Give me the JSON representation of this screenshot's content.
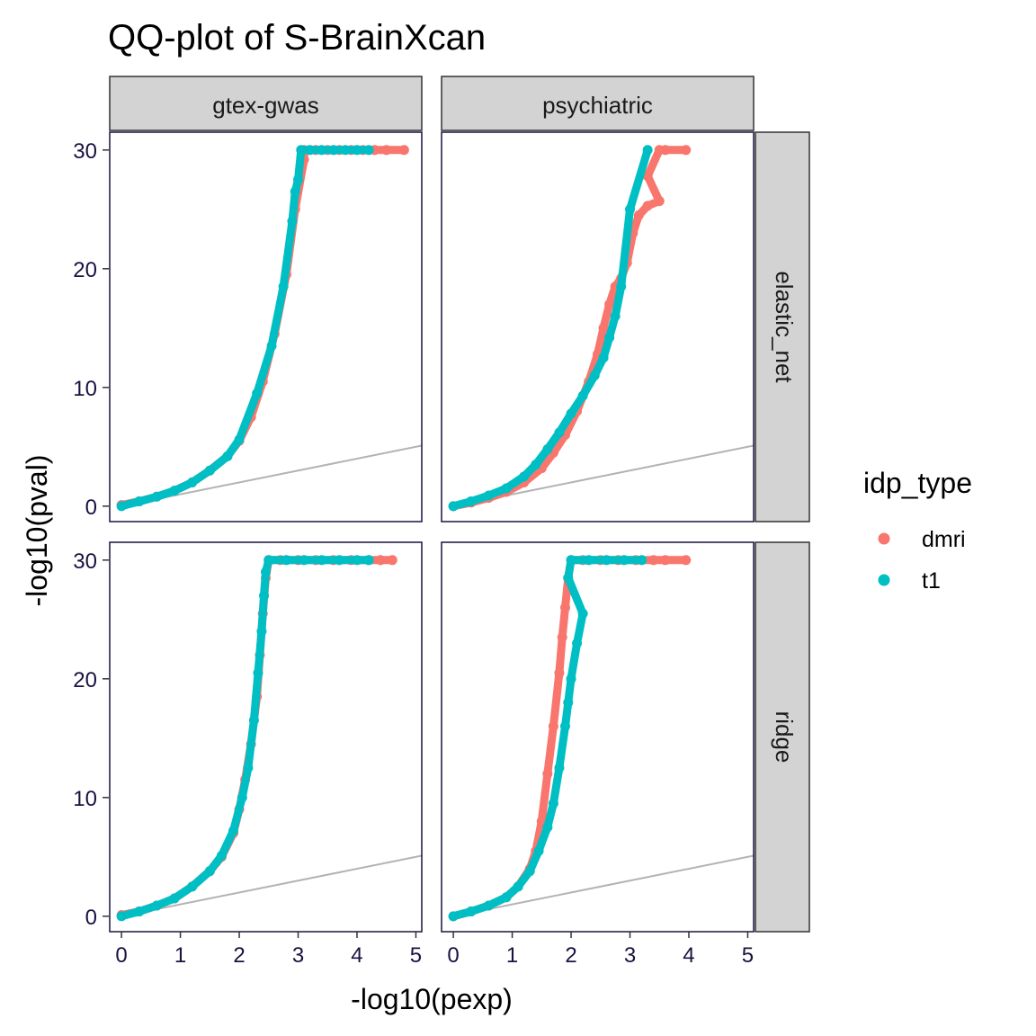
{
  "chart_data": {
    "type": "scatter",
    "title": "QQ-plot of S-BrainXcan",
    "xlabel": "-log10(pexp)",
    "ylabel": "-log10(pval)",
    "xlim": [
      -0.2,
      5.1
    ],
    "ylim": [
      -1.3,
      31.5
    ],
    "x_ticks": [
      "0",
      "1",
      "2",
      "3",
      "4",
      "5"
    ],
    "y_ticks": [
      "0",
      "10",
      "20",
      "30"
    ],
    "col_facets": [
      "gtex-gwas",
      "psychiatric"
    ],
    "row_facets": [
      "elastic_net",
      "ridge"
    ],
    "reference_line": {
      "slope": 1,
      "intercept": 0,
      "color": "#b3b3b3"
    },
    "legend": {
      "title": "idp_type",
      "position": "right",
      "entries": [
        {
          "name": "dmri",
          "color": "#F8766D"
        },
        {
          "name": "t1",
          "color": "#00BFC4"
        }
      ]
    },
    "panels": [
      {
        "col": "gtex-gwas",
        "row": "elastic_net",
        "series": [
          {
            "name": "dmri",
            "color": "#F8766D",
            "points": [
              [
                0,
                0.1
              ],
              [
                0.3,
                0.4
              ],
              [
                0.6,
                0.8
              ],
              [
                0.9,
                1.3
              ],
              [
                1.2,
                2.0
              ],
              [
                1.5,
                3.0
              ],
              [
                1.8,
                4.2
              ],
              [
                2.0,
                5.5
              ],
              [
                2.2,
                7.5
              ],
              [
                2.4,
                10.5
              ],
              [
                2.6,
                14.5
              ],
              [
                2.8,
                19.5
              ],
              [
                2.95,
                25.0
              ],
              [
                3.1,
                29.2
              ],
              [
                3.1,
                30
              ],
              [
                3.3,
                30
              ],
              [
                3.5,
                30
              ],
              [
                3.7,
                30
              ],
              [
                3.9,
                30
              ],
              [
                4.1,
                30
              ],
              [
                4.3,
                30
              ],
              [
                4.5,
                30
              ],
              [
                4.8,
                30
              ]
            ]
          },
          {
            "name": "t1",
            "color": "#00BFC4",
            "points": [
              [
                0,
                0
              ],
              [
                0.3,
                0.4
              ],
              [
                0.6,
                0.8
              ],
              [
                0.9,
                1.3
              ],
              [
                1.2,
                2.0
              ],
              [
                1.5,
                3.0
              ],
              [
                1.8,
                4.2
              ],
              [
                2.0,
                5.6
              ],
              [
                2.3,
                9.5
              ],
              [
                2.55,
                13.5
              ],
              [
                2.75,
                18.5
              ],
              [
                2.9,
                24.0
              ],
              [
                2.95,
                26.5
              ],
              [
                3.0,
                27.5
              ],
              [
                3.05,
                30
              ],
              [
                3.2,
                30
              ],
              [
                3.4,
                30
              ],
              [
                3.6,
                30
              ],
              [
                3.8,
                30
              ],
              [
                4.0,
                30
              ],
              [
                4.2,
                30
              ]
            ]
          }
        ]
      },
      {
        "col": "psychiatric",
        "row": "elastic_net",
        "series": [
          {
            "name": "dmri",
            "color": "#F8766D",
            "points": [
              [
                0,
                0
              ],
              [
                0.3,
                0.3
              ],
              [
                0.6,
                0.7
              ],
              [
                0.9,
                1.2
              ],
              [
                1.2,
                2.0
              ],
              [
                1.5,
                3.2
              ],
              [
                1.7,
                4.5
              ],
              [
                1.9,
                6.0
              ],
              [
                2.1,
                8.0
              ],
              [
                2.3,
                10.5
              ],
              [
                2.45,
                12.8
              ],
              [
                2.55,
                15.0
              ],
              [
                2.65,
                17.0
              ],
              [
                2.75,
                18.5
              ],
              [
                2.85,
                19.2
              ],
              [
                2.95,
                20.5
              ],
              [
                3.05,
                23.0
              ],
              [
                3.15,
                24.5
              ],
              [
                3.3,
                25.3
              ],
              [
                3.5,
                25.7
              ],
              [
                3.3,
                27.8
              ],
              [
                3.5,
                30
              ],
              [
                3.6,
                30
              ],
              [
                3.95,
                30
              ]
            ]
          },
          {
            "name": "t1",
            "color": "#00BFC4",
            "points": [
              [
                0,
                0
              ],
              [
                0.3,
                0.4
              ],
              [
                0.6,
                0.9
              ],
              [
                0.9,
                1.5
              ],
              [
                1.2,
                2.5
              ],
              [
                1.4,
                3.5
              ],
              [
                1.6,
                4.8
              ],
              [
                1.8,
                6.2
              ],
              [
                2.0,
                7.8
              ],
              [
                2.2,
                9.3
              ],
              [
                2.4,
                11.0
              ],
              [
                2.55,
                12.5
              ],
              [
                2.65,
                14.2
              ],
              [
                2.75,
                16.0
              ],
              [
                2.85,
                18.5
              ],
              [
                3.0,
                25.0
              ],
              [
                3.3,
                30
              ]
            ]
          }
        ]
      },
      {
        "col": "gtex-gwas",
        "row": "ridge",
        "series": [
          {
            "name": "dmri",
            "color": "#F8766D",
            "points": [
              [
                0,
                0.1
              ],
              [
                0.3,
                0.4
              ],
              [
                0.6,
                0.9
              ],
              [
                0.9,
                1.5
              ],
              [
                1.2,
                2.5
              ],
              [
                1.5,
                3.8
              ],
              [
                1.7,
                5.0
              ],
              [
                1.9,
                7.0
              ],
              [
                2.0,
                9.0
              ],
              [
                2.1,
                11.5
              ],
              [
                2.2,
                14.5
              ],
              [
                2.3,
                18.5
              ],
              [
                2.35,
                22.0
              ],
              [
                2.4,
                25.5
              ],
              [
                2.45,
                28.5
              ],
              [
                2.5,
                30
              ],
              [
                2.7,
                30
              ],
              [
                3.0,
                30
              ],
              [
                3.3,
                30
              ],
              [
                3.6,
                30
              ],
              [
                3.9,
                30
              ],
              [
                4.2,
                30
              ],
              [
                4.4,
                30
              ],
              [
                4.6,
                30
              ]
            ]
          },
          {
            "name": "t1",
            "color": "#00BFC4",
            "points": [
              [
                0,
                0
              ],
              [
                0.3,
                0.4
              ],
              [
                0.6,
                0.9
              ],
              [
                0.9,
                1.5
              ],
              [
                1.2,
                2.5
              ],
              [
                1.5,
                3.8
              ],
              [
                1.7,
                5.1
              ],
              [
                1.9,
                7.2
              ],
              [
                2.05,
                10.0
              ],
              [
                2.15,
                12.5
              ],
              [
                2.25,
                16.5
              ],
              [
                2.32,
                20.5
              ],
              [
                2.38,
                24.0
              ],
              [
                2.42,
                27.0
              ],
              [
                2.45,
                29.0
              ],
              [
                2.5,
                30
              ],
              [
                2.8,
                30
              ],
              [
                3.1,
                30
              ],
              [
                3.4,
                30
              ],
              [
                3.7,
                30
              ],
              [
                4.0,
                30
              ],
              [
                4.2,
                30
              ]
            ]
          }
        ]
      },
      {
        "col": "psychiatric",
        "row": "ridge",
        "series": [
          {
            "name": "dmri",
            "color": "#F8766D",
            "points": [
              [
                0,
                0
              ],
              [
                0.3,
                0.4
              ],
              [
                0.6,
                0.9
              ],
              [
                0.9,
                1.6
              ],
              [
                1.1,
                2.5
              ],
              [
                1.3,
                4.0
              ],
              [
                1.4,
                5.5
              ],
              [
                1.5,
                8.0
              ],
              [
                1.6,
                12.0
              ],
              [
                1.7,
                16.0
              ],
              [
                1.8,
                20.5
              ],
              [
                1.85,
                23.5
              ],
              [
                1.9,
                26.0
              ],
              [
                1.95,
                28.5
              ],
              [
                2.0,
                30
              ],
              [
                2.2,
                30
              ],
              [
                2.5,
                30
              ],
              [
                2.8,
                30
              ],
              [
                3.1,
                30
              ],
              [
                3.4,
                30
              ],
              [
                3.6,
                30
              ],
              [
                3.95,
                30
              ]
            ]
          },
          {
            "name": "t1",
            "color": "#00BFC4",
            "points": [
              [
                0,
                0
              ],
              [
                0.3,
                0.4
              ],
              [
                0.6,
                0.9
              ],
              [
                0.9,
                1.6
              ],
              [
                1.1,
                2.5
              ],
              [
                1.3,
                3.8
              ],
              [
                1.45,
                5.5
              ],
              [
                1.6,
                7.5
              ],
              [
                1.7,
                9.5
              ],
              [
                1.8,
                12.5
              ],
              [
                1.9,
                16.0
              ],
              [
                1.95,
                18.0
              ],
              [
                2.0,
                20.0
              ],
              [
                2.1,
                23.0
              ],
              [
                2.2,
                25.5
              ],
              [
                1.95,
                28.5
              ],
              [
                2.0,
                30
              ],
              [
                2.3,
                30
              ],
              [
                2.6,
                30
              ],
              [
                2.9,
                30
              ],
              [
                3.2,
                30
              ]
            ]
          }
        ]
      }
    ]
  }
}
